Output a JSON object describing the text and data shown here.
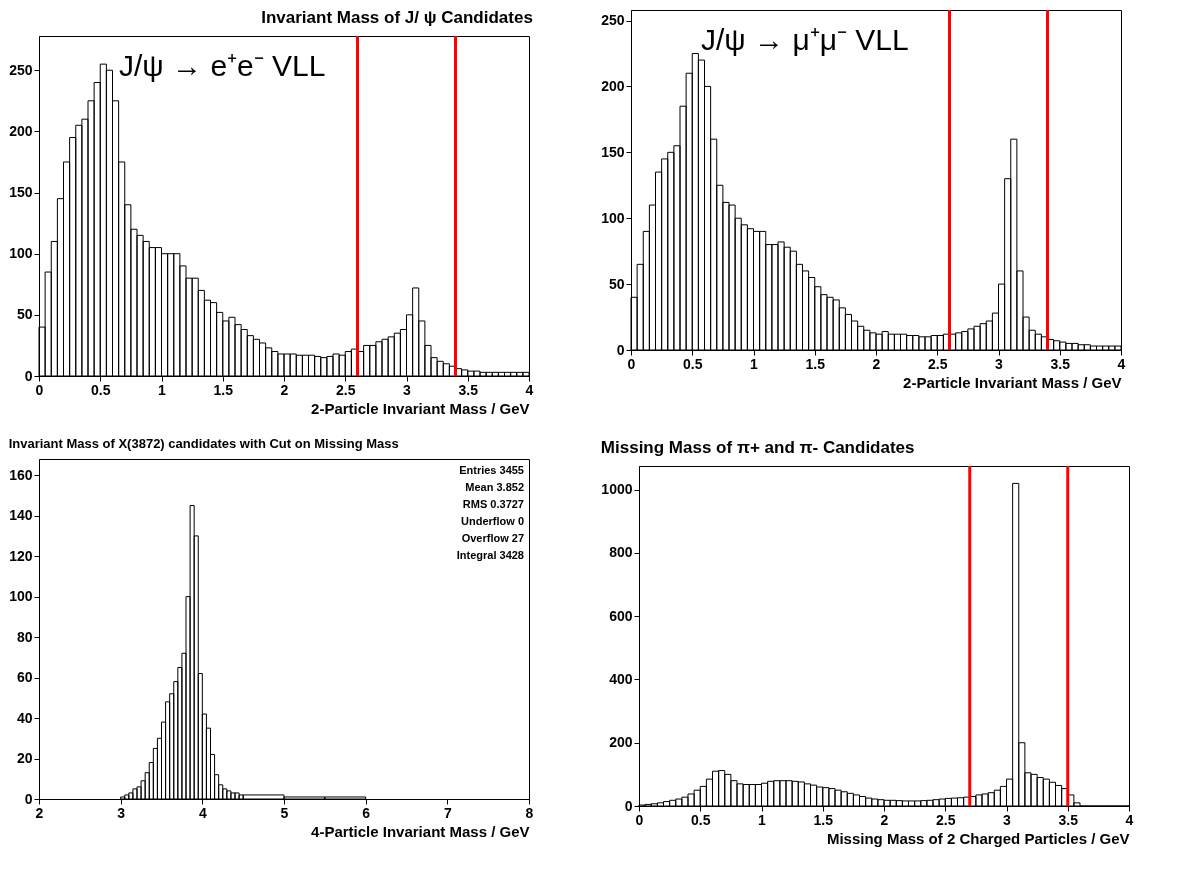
{
  "chart_data": [
    {
      "type": "histogram",
      "title": "Invariant Mass of J/ ψ Candidates",
      "xlabel": "2-Particle Invariant Mass / GeV",
      "color": "#000000",
      "annotations": [
        "J/ψ → e⁺e⁻ VLL"
      ],
      "bins": [
        0,
        0.05,
        0.1,
        0.15,
        0.2,
        0.25,
        0.3,
        0.35,
        0.4,
        0.45,
        0.5,
        0.55,
        0.6,
        0.65,
        0.7,
        0.75,
        0.8,
        0.85,
        0.9,
        0.95,
        1,
        1.05,
        1.1,
        1.15,
        1.2,
        1.25,
        1.3,
        1.35,
        1.4,
        1.45,
        1.5,
        1.55,
        1.6,
        1.65,
        1.7,
        1.75,
        1.8,
        1.85,
        1.9,
        1.95,
        2,
        2.05,
        2.1,
        2.15,
        2.2,
        2.25,
        2.3,
        2.35,
        2.4,
        2.45,
        2.5,
        2.55,
        2.6,
        2.65,
        2.7,
        2.75,
        2.8,
        2.85,
        2.9,
        2.95,
        3,
        3.05,
        3.1,
        3.15,
        3.2,
        3.25,
        3.3,
        3.35,
        3.4,
        3.45,
        3.5,
        3.55,
        3.6,
        3.65,
        3.7,
        3.75,
        3.8,
        3.85,
        3.9,
        3.95,
        4
      ],
      "values": [
        40,
        85,
        110,
        145,
        175,
        195,
        205,
        210,
        225,
        240,
        255,
        250,
        225,
        175,
        140,
        120,
        115,
        110,
        105,
        105,
        100,
        100,
        100,
        90,
        80,
        80,
        70,
        62,
        60,
        52,
        45,
        48,
        42,
        38,
        33,
        30,
        27,
        23,
        20,
        18,
        18,
        18,
        17,
        17,
        17,
        16,
        15,
        16,
        18,
        17,
        20,
        22,
        20,
        25,
        25,
        28,
        30,
        32,
        35,
        38,
        50,
        72,
        45,
        25,
        15,
        12,
        10,
        8,
        6,
        5,
        4,
        4,
        3,
        3,
        3,
        3,
        3,
        3,
        3,
        3
      ],
      "xlim": [
        0,
        4
      ],
      "ylim": [
        0,
        278
      ],
      "xticks": [
        0,
        0.5,
        1,
        1.5,
        2,
        2.5,
        3,
        3.5,
        4
      ],
      "yticks": [
        0,
        50,
        100,
        150,
        200,
        250
      ],
      "ref_lines": [
        {
          "axis": "x",
          "value": 2.6,
          "color": "#ff0000"
        },
        {
          "axis": "x",
          "value": 3.4,
          "color": "#ff0000"
        }
      ]
    },
    {
      "type": "histogram",
      "xlabel": "2-Particle Invariant Mass / GeV",
      "color": "#000000",
      "annotations": [
        "J/ψ → μ⁺μ⁻ VLL"
      ],
      "bins": [
        0,
        0.05,
        0.1,
        0.15,
        0.2,
        0.25,
        0.3,
        0.35,
        0.4,
        0.45,
        0.5,
        0.55,
        0.6,
        0.65,
        0.7,
        0.75,
        0.8,
        0.85,
        0.9,
        0.95,
        1,
        1.05,
        1.1,
        1.15,
        1.2,
        1.25,
        1.3,
        1.35,
        1.4,
        1.45,
        1.5,
        1.55,
        1.6,
        1.65,
        1.7,
        1.75,
        1.8,
        1.85,
        1.9,
        1.95,
        2,
        2.05,
        2.1,
        2.15,
        2.2,
        2.25,
        2.3,
        2.35,
        2.4,
        2.45,
        2.5,
        2.55,
        2.6,
        2.65,
        2.7,
        2.75,
        2.8,
        2.85,
        2.9,
        2.95,
        3,
        3.05,
        3.1,
        3.15,
        3.2,
        3.25,
        3.3,
        3.35,
        3.4,
        3.45,
        3.5,
        3.55,
        3.6,
        3.65,
        3.7,
        3.75,
        3.8,
        3.85,
        3.9,
        3.95,
        4
      ],
      "values": [
        40,
        65,
        90,
        110,
        135,
        145,
        150,
        155,
        185,
        210,
        225,
        220,
        200,
        160,
        125,
        112,
        110,
        100,
        95,
        92,
        90,
        90,
        80,
        80,
        82,
        78,
        75,
        65,
        60,
        55,
        48,
        42,
        40,
        38,
        32,
        27,
        22,
        18,
        15,
        13,
        12,
        14,
        12,
        12,
        12,
        11,
        11,
        10,
        10,
        11,
        11,
        12,
        12,
        13,
        14,
        16,
        18,
        20,
        22,
        28,
        50,
        130,
        160,
        60,
        25,
        15,
        12,
        10,
        8,
        7,
        6,
        5,
        5,
        4,
        4,
        3,
        3,
        3,
        3,
        3
      ],
      "xlim": [
        0,
        4
      ],
      "ylim": [
        0,
        258
      ],
      "xticks": [
        0,
        0.5,
        1,
        1.5,
        2,
        2.5,
        3,
        3.5,
        4
      ],
      "yticks": [
        0,
        50,
        100,
        150,
        200,
        250
      ],
      "ref_lines": [
        {
          "axis": "x",
          "value": 2.6,
          "color": "#ff0000"
        },
        {
          "axis": "x",
          "value": 3.4,
          "color": "#ff0000"
        }
      ]
    },
    {
      "type": "histogram",
      "title": "Invariant Mass of X(3872) candidates with Cut on Missing Mass",
      "xlabel": "4-Particle Invariant Mass / GeV",
      "color": "#000000",
      "annotations": [
        "Entries 3455",
        "Mean 3.852",
        "RMS 0.3727",
        "Underflow 0",
        "Overflow 27",
        "Integral 3428"
      ],
      "bins": [
        3,
        3.05,
        3.1,
        3.15,
        3.2,
        3.25,
        3.3,
        3.35,
        3.4,
        3.45,
        3.5,
        3.55,
        3.6,
        3.65,
        3.7,
        3.75,
        3.8,
        3.85,
        3.9,
        3.95,
        4,
        4.05,
        4.1,
        4.15,
        4.2,
        4.25,
        4.3,
        4.35,
        4.4,
        4.45,
        4.5,
        5,
        5.5,
        6
      ],
      "values": [
        1,
        2,
        3,
        5,
        6,
        9,
        13,
        18,
        25,
        30,
        38,
        48,
        52,
        58,
        65,
        72,
        100,
        145,
        130,
        62,
        42,
        35,
        22,
        12,
        7,
        5,
        4,
        3,
        3,
        2,
        2,
        1,
        1
      ],
      "xlim": [
        2,
        8
      ],
      "ylim": [
        0,
        168
      ],
      "xticks": [
        2,
        3,
        4,
        5,
        6,
        7,
        8
      ],
      "yticks": [
        0,
        20,
        40,
        60,
        80,
        100,
        120,
        140,
        160
      ]
    },
    {
      "type": "histogram",
      "title": "Missing Mass of  π+ and π- Candidates",
      "xlabel": "Missing Mass of 2 Charged Particles / GeV",
      "color": "#000000",
      "bins": [
        0,
        0.05,
        0.1,
        0.15,
        0.2,
        0.25,
        0.3,
        0.35,
        0.4,
        0.45,
        0.5,
        0.55,
        0.6,
        0.65,
        0.7,
        0.75,
        0.8,
        0.85,
        0.9,
        0.95,
        1,
        1.05,
        1.1,
        1.15,
        1.2,
        1.25,
        1.3,
        1.35,
        1.4,
        1.45,
        1.5,
        1.55,
        1.6,
        1.65,
        1.7,
        1.75,
        1.8,
        1.85,
        1.9,
        1.95,
        2,
        2.05,
        2.1,
        2.15,
        2.2,
        2.25,
        2.3,
        2.35,
        2.4,
        2.45,
        2.5,
        2.55,
        2.6,
        2.65,
        2.7,
        2.75,
        2.8,
        2.85,
        2.9,
        2.95,
        3,
        3.05,
        3.1,
        3.15,
        3.2,
        3.25,
        3.3,
        3.35,
        3.4,
        3.45,
        3.5,
        3.55,
        3.6,
        3.65,
        3.7,
        3.75,
        3.8,
        3.85,
        3.9,
        3.95,
        4
      ],
      "values": [
        3,
        5,
        7,
        10,
        14,
        18,
        22,
        28,
        38,
        50,
        62,
        85,
        110,
        112,
        100,
        80,
        70,
        68,
        68,
        68,
        72,
        78,
        80,
        80,
        80,
        78,
        76,
        70,
        66,
        60,
        58,
        55,
        50,
        45,
        40,
        35,
        30,
        25,
        22,
        20,
        18,
        18,
        17,
        16,
        16,
        16,
        17,
        18,
        20,
        22,
        24,
        25,
        26,
        28,
        30,
        35,
        38,
        42,
        50,
        62,
        85,
        1020,
        200,
        105,
        100,
        90,
        85,
        75,
        65,
        55,
        35,
        10,
        0,
        0,
        0,
        0,
        0,
        0,
        0,
        0
      ],
      "xlim": [
        0,
        4
      ],
      "ylim": [
        0,
        1075
      ],
      "xticks": [
        0,
        0.5,
        1,
        1.5,
        2,
        2.5,
        3,
        3.5,
        4
      ],
      "yticks": [
        0,
        200,
        400,
        600,
        800,
        1000
      ],
      "ref_lines": [
        {
          "axis": "x",
          "value": 2.7,
          "color": "#ff0000"
        },
        {
          "axis": "x",
          "value": 3.5,
          "color": "#ff0000"
        }
      ]
    }
  ]
}
